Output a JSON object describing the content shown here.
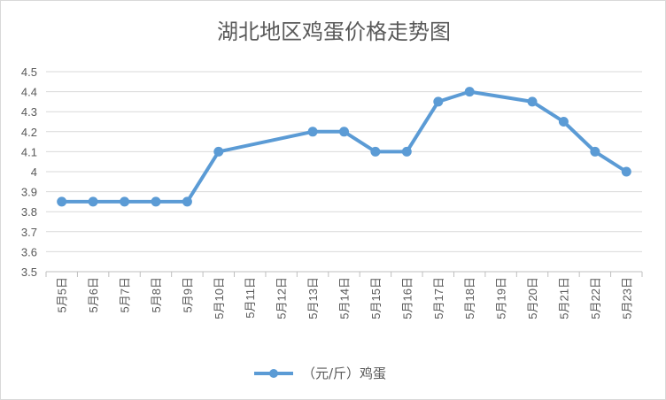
{
  "chart_data": {
    "type": "line",
    "title": "湖北地区鸡蛋价格走势图",
    "categories": [
      "5月5日",
      "5月6日",
      "5月7日",
      "5月8日",
      "5月9日",
      "5月10日",
      "5月11日",
      "5月12日",
      "5月13日",
      "5月14日",
      "5月15日",
      "5月16日",
      "5月17日",
      "5月18日",
      "5月19日",
      "5月20日",
      "5月21日",
      "5月22日",
      "5月23日"
    ],
    "series": [
      {
        "name": "（元/斤）鸡蛋",
        "values": [
          3.85,
          3.85,
          3.85,
          3.85,
          3.85,
          4.1,
          null,
          null,
          4.2,
          4.2,
          4.1,
          4.1,
          4.35,
          4.4,
          null,
          4.35,
          4.25,
          4.1,
          4.0
        ],
        "color": "#5b9bd5"
      }
    ],
    "ylim": [
      3.5,
      4.5
    ],
    "yticks": [
      "3.5",
      "3.6",
      "3.7",
      "3.8",
      "3.9",
      "4",
      "4.1",
      "4.2",
      "4.3",
      "4.4",
      "4.5"
    ],
    "grid": true,
    "legend_position": "bottom",
    "colors": {
      "line": "#5b9bd5",
      "grid": "#d9d9d9",
      "text": "#595959"
    }
  }
}
